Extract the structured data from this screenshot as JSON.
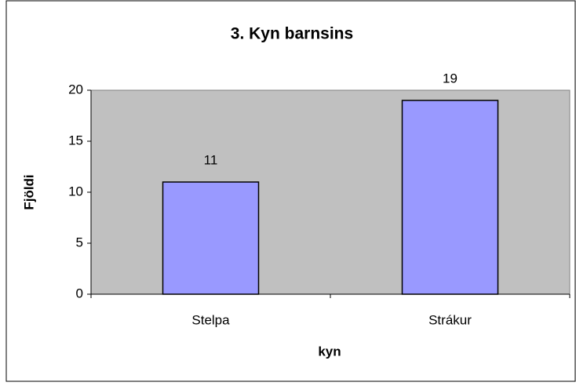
{
  "chart_data": {
    "type": "bar",
    "title": "3. Kyn barnsins",
    "categories": [
      "Stelpa",
      "Strákur"
    ],
    "values": [
      11,
      19
    ],
    "color": "#9999ff",
    "xlabel": "kyn",
    "ylabel": "Fjöldi",
    "ylim": [
      0,
      20
    ],
    "yticks": [
      0,
      5,
      10,
      15,
      20
    ],
    "grid": false,
    "value_labels_shown": true
  }
}
